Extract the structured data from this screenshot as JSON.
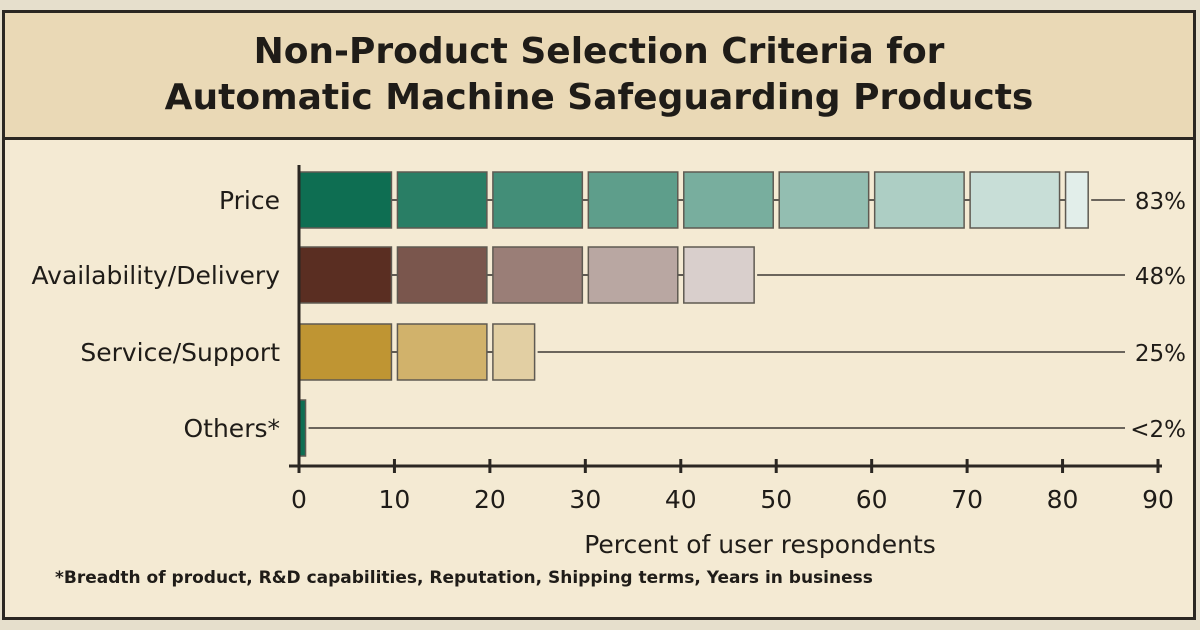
{
  "chart_data": {
    "type": "bar",
    "title": "Non-Product Selection Criteria for\nAutomatic Machine Safeguarding Products",
    "xlabel": "Percent of user respondents",
    "ylabel": "",
    "xlim": [
      0,
      90
    ],
    "x_ticks": [
      0,
      10,
      20,
      30,
      40,
      50,
      60,
      70,
      80,
      90
    ],
    "categories": [
      "Price",
      "Availability/Delivery",
      "Service/Support",
      "Others*"
    ],
    "values": [
      83,
      48,
      25,
      1
    ],
    "value_labels": [
      "83%",
      "48%",
      "25%",
      "<2%"
    ],
    "colors": {
      "Price": "#0e6e52",
      "Availability/Delivery": "#5a2e22",
      "Service/Support": "#bf9533",
      "Others*": "#0e6e52"
    },
    "footnote": "*Breadth of product, R&D capabilities, Reputation, Shipping terms, Years in business"
  }
}
